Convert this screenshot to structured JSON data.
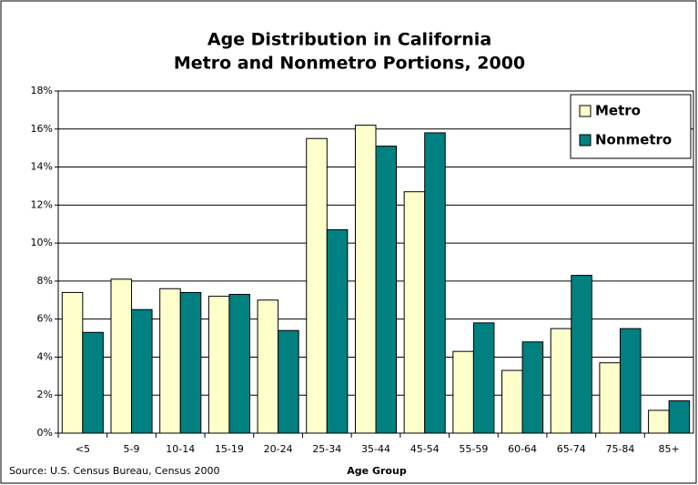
{
  "chart_data": {
    "type": "bar",
    "title": "Age Distribution in California",
    "subtitle": "Metro and Nonmetro Portions, 2000",
    "x_label": "Age Group",
    "source": "Source: U.S. Census Bureau, Census 2000",
    "categories": [
      "<5",
      "5-9",
      "10-14",
      "15-19",
      "20-24",
      "25-34",
      "35-44",
      "45-54",
      "55-59",
      "60-64",
      "65-74",
      "75-84",
      "85+"
    ],
    "series": [
      {
        "name": "Metro",
        "color": "#ffffcc",
        "values": [
          7.4,
          8.1,
          7.6,
          7.2,
          7.0,
          15.5,
          16.2,
          12.7,
          4.3,
          3.3,
          5.5,
          3.7,
          1.2
        ]
      },
      {
        "name": "Nonmetro",
        "color": "#008080",
        "values": [
          5.3,
          6.5,
          7.4,
          7.3,
          5.4,
          10.7,
          15.1,
          15.8,
          5.8,
          4.8,
          8.3,
          5.5,
          1.7
        ]
      }
    ],
    "ylim": [
      0,
      18
    ],
    "yticks": [
      {
        "value": 0,
        "label": "0%"
      },
      {
        "value": 2,
        "label": "2%"
      },
      {
        "value": 4,
        "label": "4%"
      },
      {
        "value": 6,
        "label": "6%"
      },
      {
        "value": 8,
        "label": "8%"
      },
      {
        "value": 10,
        "label": "10%"
      },
      {
        "value": 12,
        "label": "12%"
      },
      {
        "value": 14,
        "label": "14%"
      },
      {
        "value": 16,
        "label": "16%"
      },
      {
        "value": 18,
        "label": "18%"
      }
    ],
    "grid": true,
    "legend": "upper right"
  }
}
